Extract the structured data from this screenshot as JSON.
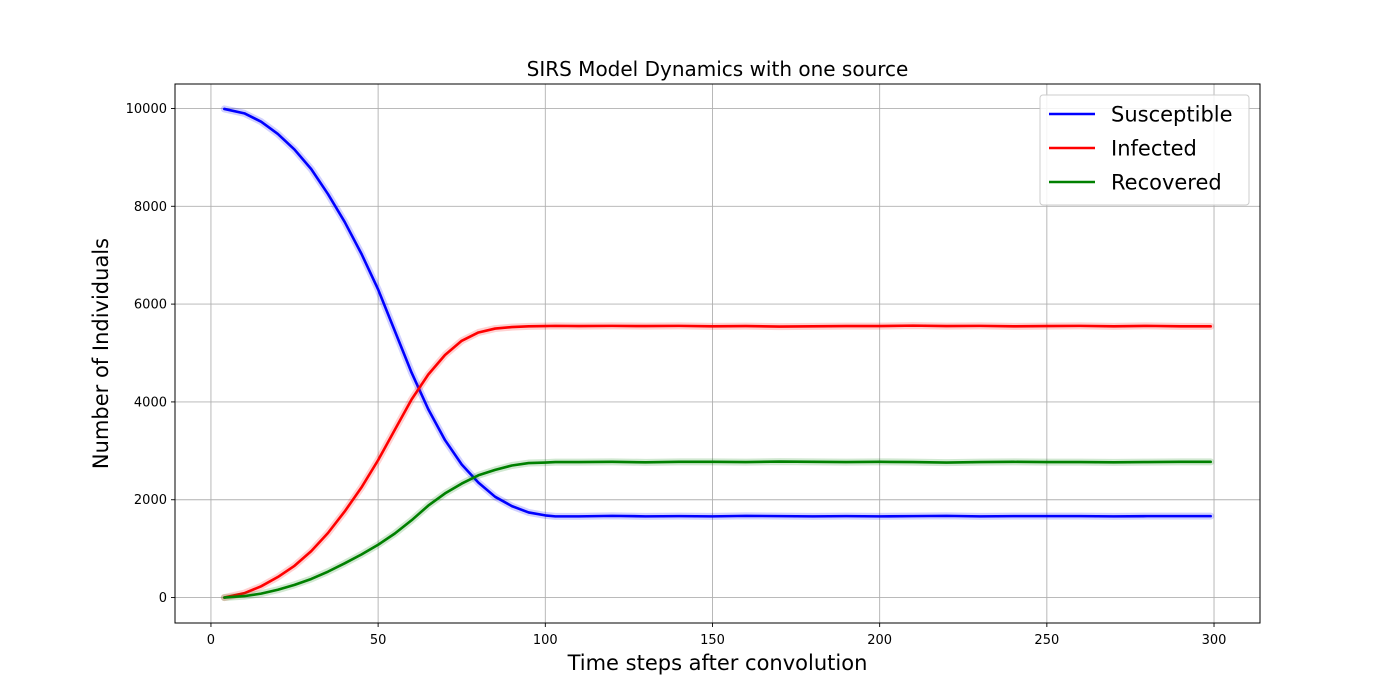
{
  "chart_data": {
    "type": "line",
    "title": "SIRS Model Dynamics with one source",
    "xlabel": "Time steps after convolution",
    "ylabel": "Number of Individuals",
    "xlim": [
      -10.75,
      313.75
    ],
    "ylim": [
      -520,
      10500
    ],
    "xticks": [
      0,
      50,
      100,
      150,
      200,
      250,
      300
    ],
    "yticks": [
      0,
      2000,
      4000,
      6000,
      8000,
      10000
    ],
    "grid": true,
    "legend_position": "top-right",
    "x": [
      4,
      10,
      15,
      20,
      25,
      30,
      35,
      40,
      45,
      50,
      55,
      60,
      65,
      70,
      75,
      80,
      85,
      90,
      95,
      100,
      103,
      110,
      120,
      130,
      140,
      150,
      160,
      170,
      180,
      190,
      200,
      210,
      220,
      230,
      240,
      250,
      260,
      270,
      280,
      290,
      299
    ],
    "series": [
      {
        "name": "Susceptible",
        "color": "#0000ff",
        "values": [
          9990,
          9900,
          9730,
          9480,
          9160,
          8760,
          8250,
          7680,
          7030,
          6300,
          5450,
          4600,
          3850,
          3220,
          2720,
          2350,
          2060,
          1870,
          1740,
          1680,
          1660,
          1660,
          1670,
          1660,
          1665,
          1660,
          1670,
          1665,
          1660,
          1665,
          1660,
          1665,
          1670,
          1660,
          1665,
          1665,
          1665,
          1660,
          1665,
          1665,
          1665
        ]
      },
      {
        "name": "Infected",
        "color": "#ff0000",
        "values": [
          0,
          90,
          230,
          420,
          650,
          950,
          1320,
          1760,
          2250,
          2810,
          3430,
          4050,
          4560,
          4960,
          5250,
          5420,
          5500,
          5530,
          5545,
          5550,
          5555,
          5550,
          5555,
          5550,
          5555,
          5545,
          5550,
          5540,
          5545,
          5550,
          5550,
          5560,
          5550,
          5555,
          5545,
          5550,
          5555,
          5545,
          5555,
          5545,
          5545
        ]
      },
      {
        "name": "Recovered",
        "color": "#008000",
        "values": [
          0,
          30,
          80,
          160,
          260,
          380,
          530,
          700,
          880,
          1080,
          1310,
          1580,
          1880,
          2130,
          2330,
          2500,
          2610,
          2700,
          2750,
          2760,
          2770,
          2770,
          2775,
          2765,
          2775,
          2775,
          2770,
          2780,
          2775,
          2770,
          2775,
          2770,
          2760,
          2770,
          2775,
          2770,
          2770,
          2765,
          2770,
          2775,
          2775
        ]
      }
    ]
  }
}
